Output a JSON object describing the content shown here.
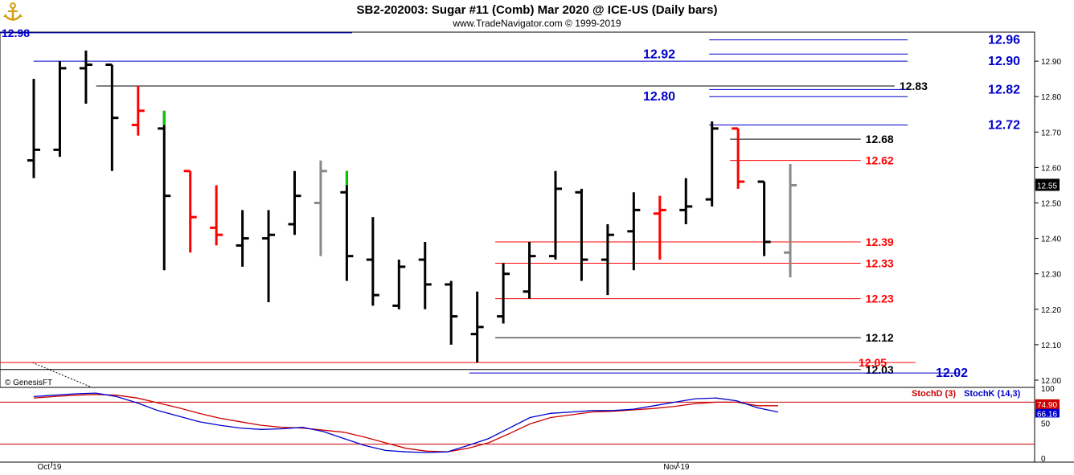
{
  "header": {
    "title": "SB2-202003:  Sugar #11 (Comb) Mar 2020 @ ICE-US  (Daily bars)",
    "subtitle": "www.TradeNavigator.com © 1999-2019"
  },
  "copyright": "© GenesisFT",
  "colors": {
    "up": "#000000",
    "down": "#ff0000",
    "green": "#00cc00",
    "gray": "#888888",
    "blue": "#0000cc",
    "red": "#ff0000",
    "black": "#000000",
    "stochD": "#cc0000",
    "stochK": "#0000cc"
  },
  "chart_data": {
    "type": "ohlc",
    "ylim": [
      12.0,
      12.99
    ],
    "y_ticks": [
      "12.90",
      "12.80",
      "12.70",
      "12.60",
      "12.50",
      "12.40",
      "12.30",
      "12.20",
      "12.10",
      "12.00"
    ],
    "x_ticks": [
      {
        "label": "Oct-19",
        "index": 1
      },
      {
        "label": "Nov-19",
        "index": 25
      }
    ],
    "last_price": "12.55",
    "bars": [
      {
        "o": 12.62,
        "h": 12.85,
        "l": 12.57,
        "c": 12.65,
        "color": "black"
      },
      {
        "o": 12.65,
        "h": 12.9,
        "l": 12.63,
        "c": 12.88,
        "color": "black"
      },
      {
        "o": 12.88,
        "h": 12.93,
        "l": 12.78,
        "c": 12.89,
        "color": "black"
      },
      {
        "o": 12.89,
        "h": 12.89,
        "l": 12.59,
        "c": 12.74,
        "color": "black"
      },
      {
        "o": 12.72,
        "h": 12.83,
        "l": 12.69,
        "c": 12.76,
        "color": "red"
      },
      {
        "o": 12.71,
        "h": 12.76,
        "l": 12.31,
        "c": 12.52,
        "color": "black",
        "green_top": 12.72
      },
      {
        "o": 12.59,
        "h": 12.59,
        "l": 12.36,
        "c": 12.46,
        "color": "red"
      },
      {
        "o": 12.43,
        "h": 12.55,
        "l": 12.38,
        "c": 12.41,
        "color": "red"
      },
      {
        "o": 12.38,
        "h": 12.48,
        "l": 12.32,
        "c": 12.4,
        "color": "black"
      },
      {
        "o": 12.4,
        "h": 12.48,
        "l": 12.22,
        "c": 12.41,
        "color": "black"
      },
      {
        "o": 12.44,
        "h": 12.59,
        "l": 12.41,
        "c": 12.52,
        "color": "black",
        "green_bottom": 12.41
      },
      {
        "o": 12.5,
        "h": 12.62,
        "l": 12.35,
        "c": 12.59,
        "color": "gray"
      },
      {
        "o": 12.53,
        "h": 12.59,
        "l": 12.28,
        "c": 12.35,
        "color": "black",
        "green_top": 12.55
      },
      {
        "o": 12.34,
        "h": 12.46,
        "l": 12.21,
        "c": 12.24,
        "color": "black"
      },
      {
        "o": 12.21,
        "h": 12.34,
        "l": 12.2,
        "c": 12.32,
        "color": "black"
      },
      {
        "o": 12.34,
        "h": 12.39,
        "l": 12.2,
        "c": 12.27,
        "color": "black"
      },
      {
        "o": 12.27,
        "h": 12.28,
        "l": 12.1,
        "c": 12.18,
        "color": "black"
      },
      {
        "o": 12.13,
        "h": 12.25,
        "l": 12.05,
        "c": 12.15,
        "color": "black"
      },
      {
        "o": 12.18,
        "h": 12.33,
        "l": 12.16,
        "c": 12.3,
        "color": "black",
        "green_bottom": 12.16
      },
      {
        "o": 12.25,
        "h": 12.39,
        "l": 12.23,
        "c": 12.35,
        "color": "black"
      },
      {
        "o": 12.35,
        "h": 12.59,
        "l": 12.34,
        "c": 12.54,
        "color": "black"
      },
      {
        "o": 12.53,
        "h": 12.54,
        "l": 12.28,
        "c": 12.34,
        "color": "black"
      },
      {
        "o": 12.34,
        "h": 12.44,
        "l": 12.24,
        "c": 12.41,
        "color": "black"
      },
      {
        "o": 12.42,
        "h": 12.53,
        "l": 12.31,
        "c": 12.48,
        "color": "black"
      },
      {
        "o": 12.47,
        "h": 12.52,
        "l": 12.34,
        "c": 12.48,
        "color": "red"
      },
      {
        "o": 12.48,
        "h": 12.57,
        "l": 12.44,
        "c": 12.49,
        "color": "black"
      },
      {
        "o": 12.51,
        "h": 12.73,
        "l": 12.49,
        "c": 12.71,
        "color": "black"
      },
      {
        "o": 12.71,
        "h": 12.71,
        "l": 12.54,
        "c": 12.56,
        "color": "red"
      },
      {
        "o": 12.56,
        "h": 12.56,
        "l": 12.35,
        "c": 12.39,
        "color": "black"
      },
      {
        "o": 12.36,
        "h": 12.61,
        "l": 12.29,
        "c": 12.55,
        "color": "gray"
      }
    ],
    "levels": [
      {
        "label": "12.98",
        "value": 12.98,
        "color": "blue",
        "from": -2,
        "to": 12.2,
        "label_side": "left"
      },
      {
        "label": "12.96",
        "value": 12.96,
        "color": "blue",
        "from": 26.2,
        "to": 33.5,
        "label_side": "right_far"
      },
      {
        "label": "12.92",
        "value": 12.92,
        "color": "blue",
        "from": 26.2,
        "to": 33.5,
        "label_side": "mid"
      },
      {
        "label": "12.90",
        "value": 12.9,
        "color": "blue",
        "from": 0.3,
        "to": 33.5,
        "label_side": "right_far"
      },
      {
        "label": "12.83",
        "value": 12.83,
        "color": "black",
        "from": 2.7,
        "to": 33.0,
        "label_side": "inline"
      },
      {
        "label": "12.82",
        "value": 12.82,
        "color": "blue",
        "from": 26.2,
        "to": 33.5,
        "label_side": "right_far"
      },
      {
        "label": "12.80",
        "value": 12.8,
        "color": "blue",
        "from": 26.2,
        "to": 33.5,
        "label_side": "mid"
      },
      {
        "label": "12.72",
        "value": 12.72,
        "color": "blue",
        "from": 26.2,
        "to": 33.5,
        "label_side": "right_far"
      },
      {
        "label": "12.68",
        "value": 12.68,
        "color": "black",
        "from": 27.0,
        "to": 31.7,
        "label_side": "inline"
      },
      {
        "label": "12.62",
        "value": 12.62,
        "color": "red",
        "from": 27.0,
        "to": 31.7,
        "label_side": "inline"
      },
      {
        "label": "12.39",
        "value": 12.39,
        "color": "red",
        "from": 18.0,
        "to": 31.7,
        "label_side": "inline"
      },
      {
        "label": "12.33",
        "value": 12.33,
        "color": "red",
        "from": 18.0,
        "to": 31.7,
        "label_side": "inline"
      },
      {
        "label": "12.23",
        "value": 12.23,
        "color": "red",
        "from": 18.0,
        "to": 31.7,
        "label_side": "inline"
      },
      {
        "label": "12.12",
        "value": 12.12,
        "color": "black",
        "from": 18.0,
        "to": 31.7,
        "label_side": "inline"
      },
      {
        "label": "12.05",
        "value": 12.05,
        "color": "red",
        "from": -2,
        "to": 33.8,
        "label_side": "inline2"
      },
      {
        "label": "12.03",
        "value": 12.03,
        "color": "black",
        "from": -2,
        "to": 31.7,
        "label_side": "inline"
      },
      {
        "label": "12.02",
        "value": 12.02,
        "color": "blue",
        "from": 17.0,
        "to": 35.5,
        "label_side": "inline3"
      }
    ],
    "stochastic": {
      "ylim": [
        0,
        100
      ],
      "y_ticks": [
        "100",
        "50",
        "0"
      ],
      "legend": [
        "StochD (3)",
        "StochK (14,3)"
      ],
      "last_d": "74.90",
      "last_k": "66.16",
      "d": [
        86,
        88,
        90,
        91,
        90,
        86,
        79,
        72,
        64,
        57,
        52,
        47,
        44,
        43,
        40,
        37,
        30,
        22,
        14,
        10,
        9,
        14,
        22,
        35,
        49,
        58,
        62,
        66,
        67,
        69,
        71,
        74,
        78,
        80,
        80,
        75,
        75
      ],
      "k": [
        88,
        90,
        92,
        93,
        88,
        79,
        68,
        60,
        52,
        47,
        43,
        41,
        42,
        44,
        38,
        28,
        18,
        11,
        9,
        8,
        9,
        18,
        28,
        43,
        58,
        64,
        66,
        68,
        68,
        70,
        75,
        80,
        85,
        86,
        82,
        72,
        66
      ]
    }
  }
}
